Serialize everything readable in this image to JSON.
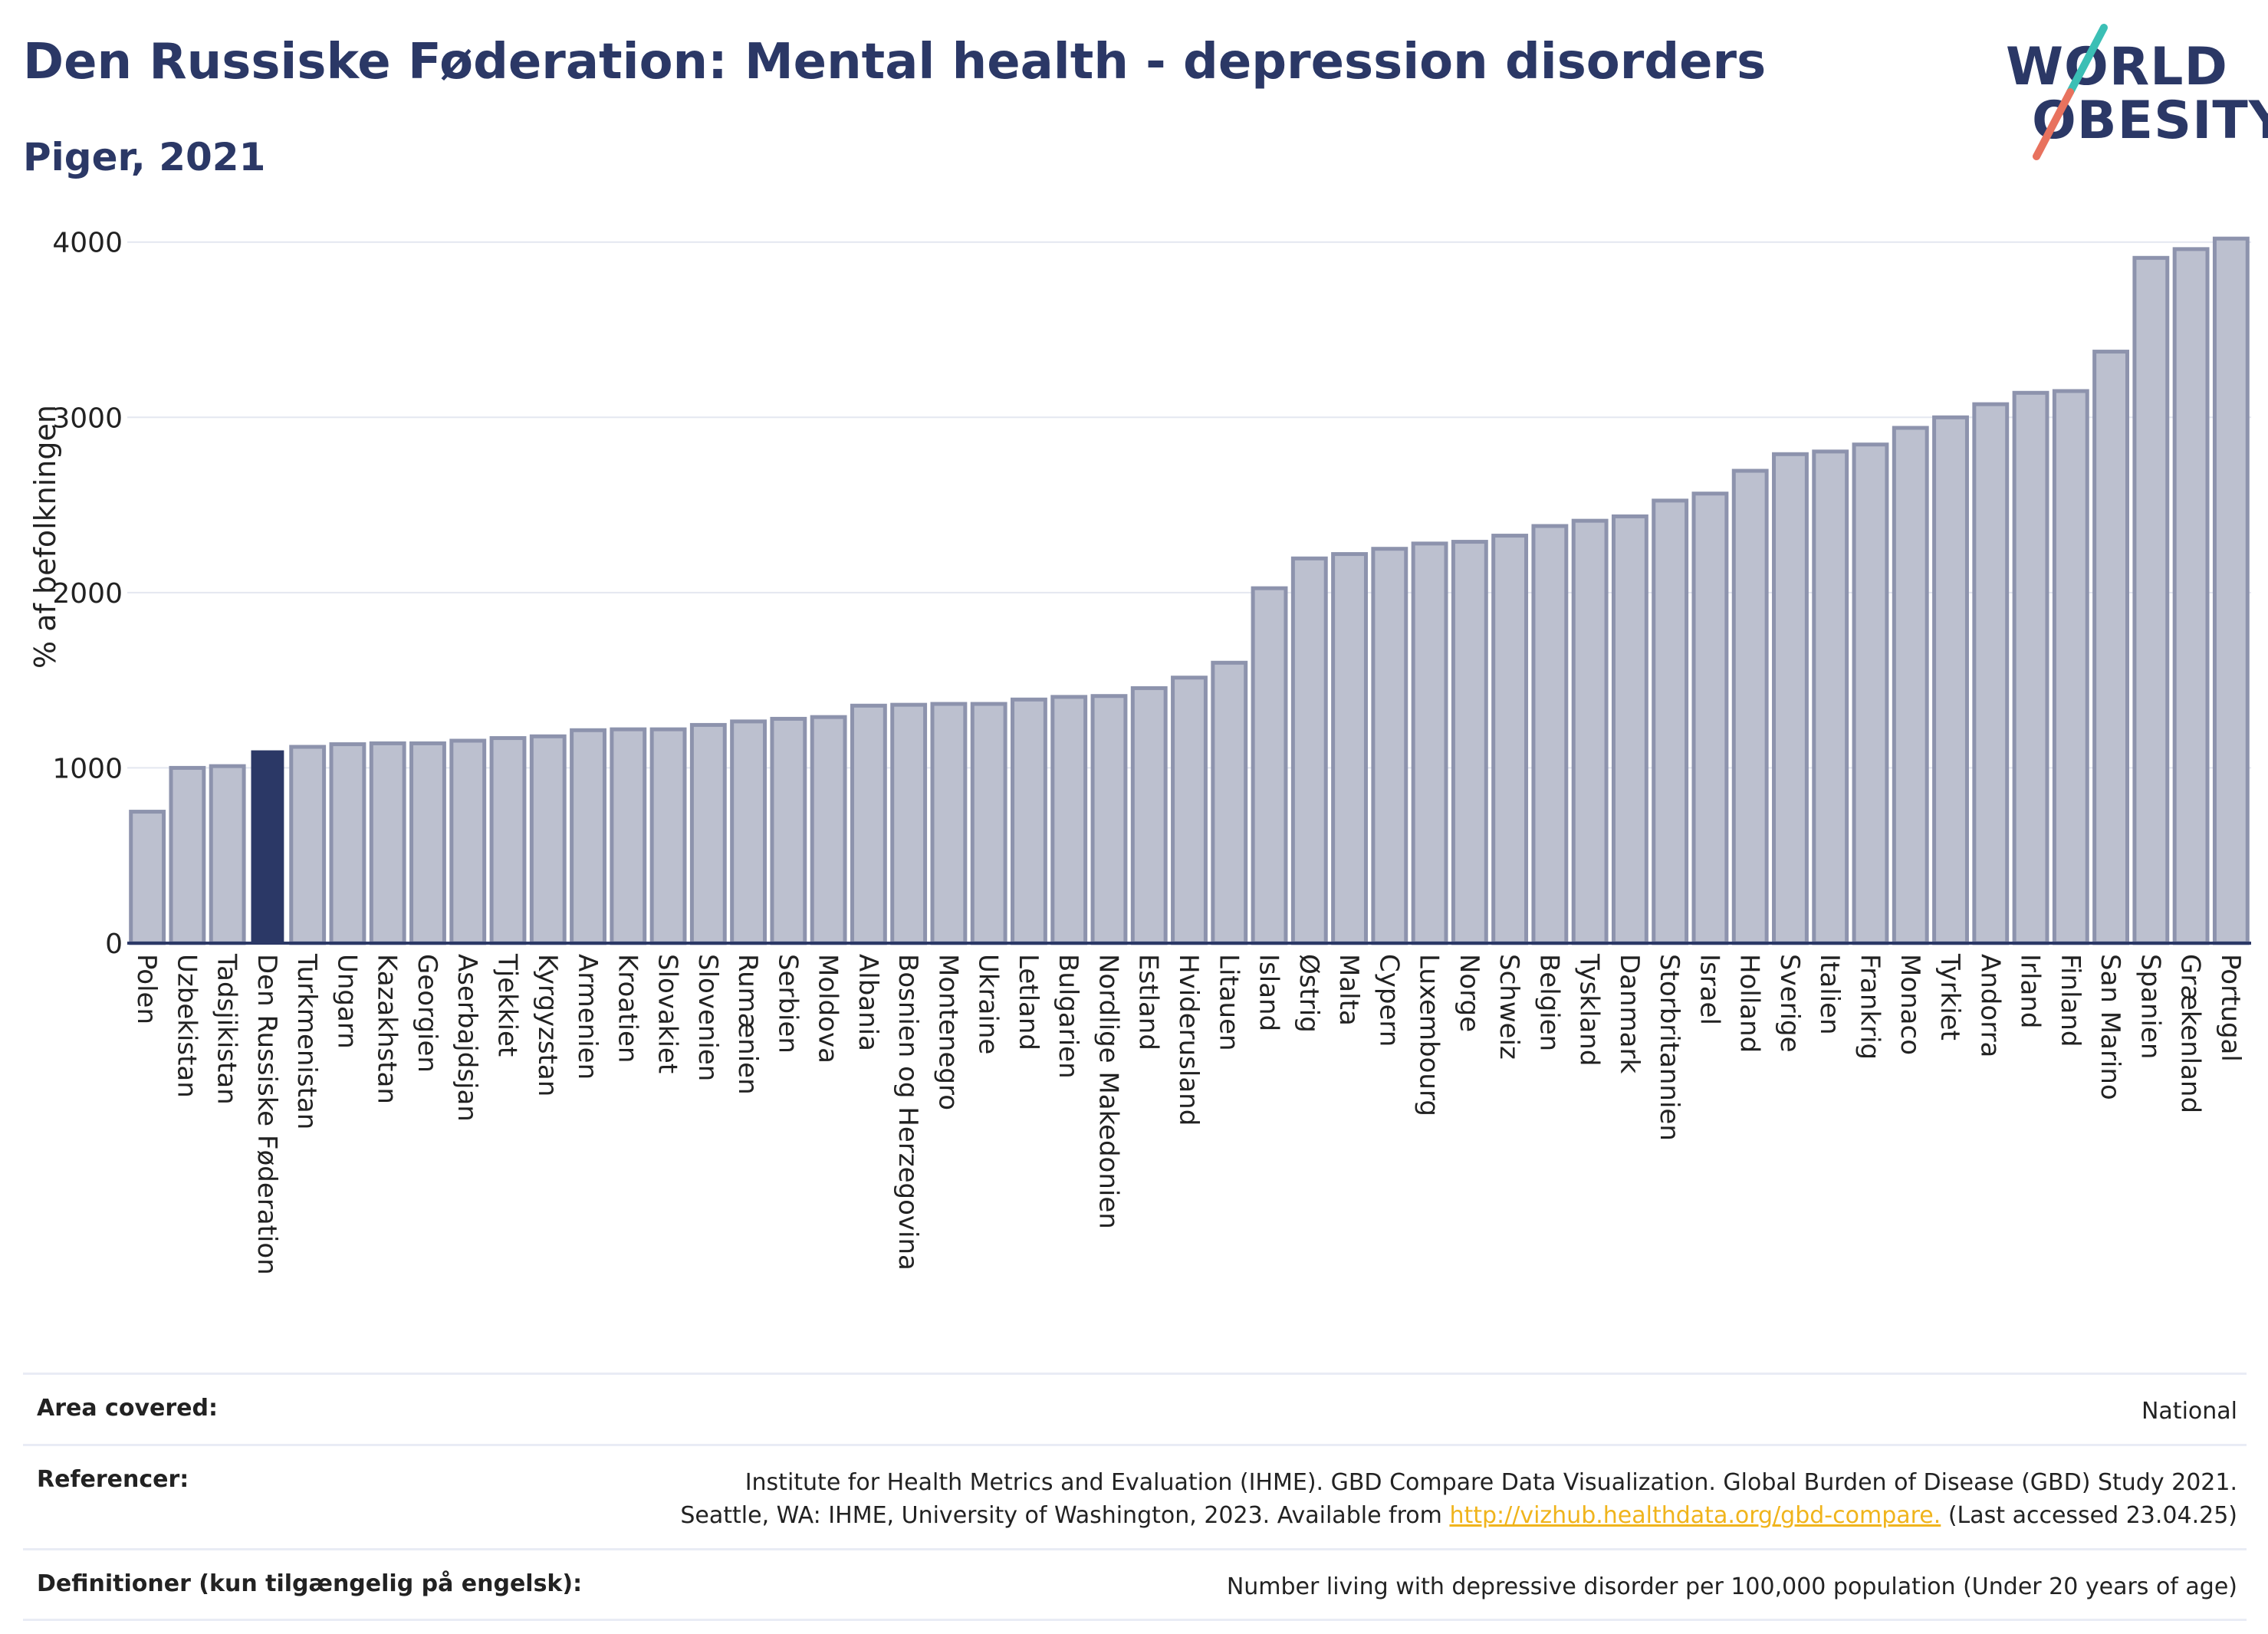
{
  "header": {
    "title": "Den Russiske Føderation: Mental health - depression disorders",
    "subtitle": "Piger, 2021"
  },
  "logo": {
    "line1": "WORLD",
    "line2": "OBESITY",
    "colors": {
      "text": "#2b3866",
      "slash_top": "#3bbfb5",
      "slash_bottom": "#e8725e"
    }
  },
  "colors": {
    "bar": "#bcc0cf",
    "bar_stroke": "#8d93ad",
    "highlight": "#2b3866"
  },
  "chart_data": {
    "type": "bar",
    "ylabel": "% af befolkningen",
    "ylim": [
      0,
      4200
    ],
    "yticks": [
      0,
      1000,
      2000,
      3000,
      4000
    ],
    "grid": true,
    "highlight": "Den Russiske Føderation",
    "categories": [
      "Polen",
      "Uzbekistan",
      "Tadsjikistan",
      "Den Russiske Føderation",
      "Turkmenistan",
      "Ungarn",
      "Kazakhstan",
      "Georgien",
      "Aserbajdsjan",
      "Tjekkiet",
      "Kyrgyzstan",
      "Armenien",
      "Kroatien",
      "Slovakiet",
      "Slovenien",
      "Rumænien",
      "Serbien",
      "Moldova",
      "Albania",
      "Bosnien og Herzegovina",
      "Montenegro",
      "Ukraine",
      "Letland",
      "Bulgarien",
      "Nordlige Makedonien",
      "Estland",
      "Hviderusland",
      "Litauen",
      "Island",
      "Østrig",
      "Malta",
      "Cypern",
      "Luxembourg",
      "Norge",
      "Schweiz",
      "Belgien",
      "Tyskland",
      "Danmark",
      "Storbritannien",
      "Israel",
      "Holland",
      "Sverige",
      "Italien",
      "Frankrig",
      "Monaco",
      "Tyrkiet",
      "Andorra",
      "Irland",
      "Finland",
      "San Marino",
      "Spanien",
      "Grækenland",
      "Portugal"
    ],
    "values": [
      750,
      1000,
      1010,
      1100,
      1120,
      1135,
      1140,
      1140,
      1155,
      1170,
      1180,
      1215,
      1220,
      1220,
      1245,
      1265,
      1280,
      1290,
      1355,
      1360,
      1365,
      1365,
      1390,
      1405,
      1410,
      1455,
      1515,
      1600,
      2025,
      2195,
      2220,
      2250,
      2280,
      2290,
      2325,
      2380,
      2410,
      2435,
      2525,
      2565,
      2695,
      2790,
      2805,
      2845,
      2940,
      3000,
      3075,
      3140,
      3150,
      3375,
      3910,
      3960,
      4020
    ]
  },
  "footer": {
    "area_label": "Area covered:",
    "area_value": "National",
    "ref_label": "Referencer:",
    "ref_line1": "Institute for Health Metrics and Evaluation (IHME). GBD Compare Data Visualization. Global Burden of Disease (GBD) Study 2021.",
    "ref_line2_pre": "Seattle, WA: IHME, University of Washington, 2023. Available from",
    "ref_link": "http://vizhub.healthdata.org/gbd-compare.",
    "ref_line2_post": "(Last accessed 23.04.25)",
    "def_label": "Definitioner (kun tilgængelig på engelsk):",
    "def_value": "Number living with depressive disorder per 100,000 population (Under 20 years of age)"
  }
}
